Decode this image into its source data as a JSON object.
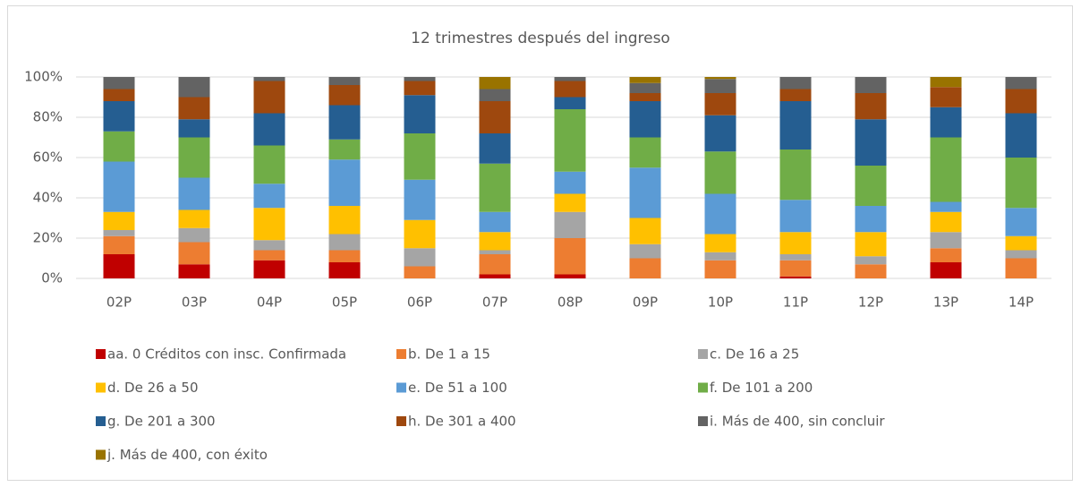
{
  "chart_data": {
    "type": "stacked_bar_100",
    "title": "12 trimestres después del ingreso",
    "categories": [
      "02P",
      "03P",
      "04P",
      "05P",
      "06P",
      "07P",
      "08P",
      "09P",
      "10P",
      "11P",
      "12P",
      "13P",
      "14P"
    ],
    "series": [
      {
        "name": "aa. 0 Créditos con insc. Confirmada",
        "color": "#c00000",
        "values": [
          12,
          7,
          9,
          8,
          0,
          2,
          2,
          0,
          0,
          1,
          0,
          8,
          0
        ]
      },
      {
        "name": "b. De 1 a 15",
        "color": "#ed7d31",
        "values": [
          9,
          11,
          5,
          6,
          6,
          10,
          18,
          10,
          9,
          8,
          7,
          7,
          10
        ]
      },
      {
        "name": "c. De 16 a 25",
        "color": "#a5a5a5",
        "values": [
          3,
          7,
          5,
          8,
          9,
          2,
          13,
          7,
          4,
          3,
          4,
          8,
          4
        ]
      },
      {
        "name": "d. De 26 a 50",
        "color": "#ffc000",
        "values": [
          9,
          9,
          16,
          14,
          14,
          9,
          9,
          13,
          9,
          11,
          12,
          10,
          7
        ]
      },
      {
        "name": "e. De 51 a 100",
        "color": "#5b9bd5",
        "values": [
          25,
          16,
          12,
          23,
          20,
          10,
          11,
          25,
          20,
          16,
          13,
          5,
          14
        ]
      },
      {
        "name": "f. De 101 a 200",
        "color": "#70ad47",
        "values": [
          15,
          20,
          19,
          10,
          23,
          24,
          31,
          15,
          21,
          25,
          20,
          32,
          25
        ]
      },
      {
        "name": "g. De 201 a 300",
        "color": "#255e91",
        "values": [
          15,
          9,
          16,
          17,
          19,
          15,
          6,
          18,
          18,
          24,
          23,
          15,
          22
        ]
      },
      {
        "name": "h. De 301 a 400",
        "color": "#9e480e",
        "values": [
          6,
          11,
          16,
          10,
          7,
          16,
          8,
          4,
          11,
          6,
          13,
          10,
          12
        ]
      },
      {
        "name": "i. Más de 400, sin concluir",
        "color": "#636363",
        "values": [
          6,
          10,
          2,
          4,
          2,
          6,
          2,
          5,
          7,
          6,
          8,
          0,
          6
        ]
      },
      {
        "name": "j. Más de 400, con éxito",
        "color": "#997300",
        "values": [
          0,
          0,
          0,
          0,
          0,
          6,
          0,
          3,
          1,
          0,
          0,
          5,
          0
        ]
      }
    ],
    "ylim": [
      0,
      100
    ],
    "yticks": [
      {
        "value": 0,
        "label": "0%"
      },
      {
        "value": 20,
        "label": "20%"
      },
      {
        "value": 40,
        "label": "40%"
      },
      {
        "value": 60,
        "label": "60%"
      },
      {
        "value": 80,
        "label": "80%"
      },
      {
        "value": 100,
        "label": "100%"
      }
    ],
    "grid": true,
    "legend": "bottom"
  }
}
